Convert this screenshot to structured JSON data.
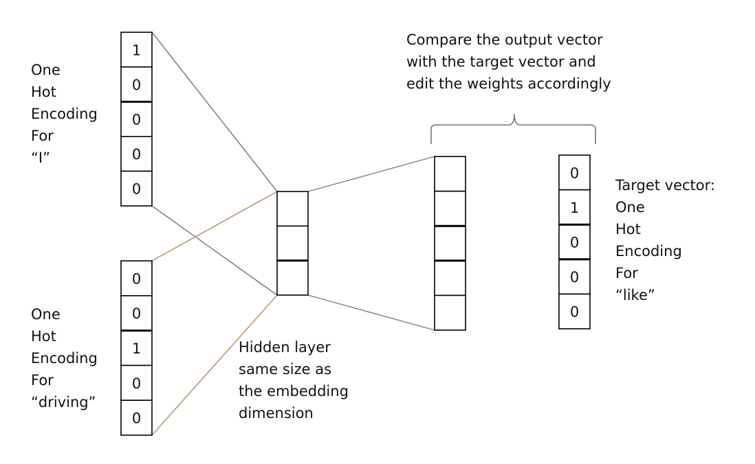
{
  "input_i": {
    "label_lines": [
      "One",
      "Hot",
      "Encoding",
      "For",
      "“I”"
    ],
    "values": [
      "1",
      "0",
      "0",
      "0",
      "0"
    ]
  },
  "input_driving": {
    "label_lines": [
      "One",
      "Hot",
      "Encoding",
      "For",
      "“driving”"
    ],
    "values": [
      "0",
      "0",
      "1",
      "0",
      "0"
    ]
  },
  "hidden": {
    "label_lines": [
      "Hidden layer",
      "same size as",
      "the embedding",
      "dimension"
    ],
    "cells": 3
  },
  "output": {
    "cells": 5,
    "compare_lines": [
      "Compare the output vector",
      "with the target vector and",
      "edit the weights accordingly"
    ]
  },
  "target": {
    "label_lines": [
      "Target vector:",
      "One",
      "Hot",
      "Encoding",
      "For",
      "“like”"
    ],
    "values": [
      "0",
      "1",
      "0",
      "0",
      "0"
    ]
  },
  "colors": {
    "connector_input_i": "#7d8196",
    "connector_input_driving": "#b89a6e",
    "connector_output": "#a08c74",
    "brace": "#6e7585"
  }
}
